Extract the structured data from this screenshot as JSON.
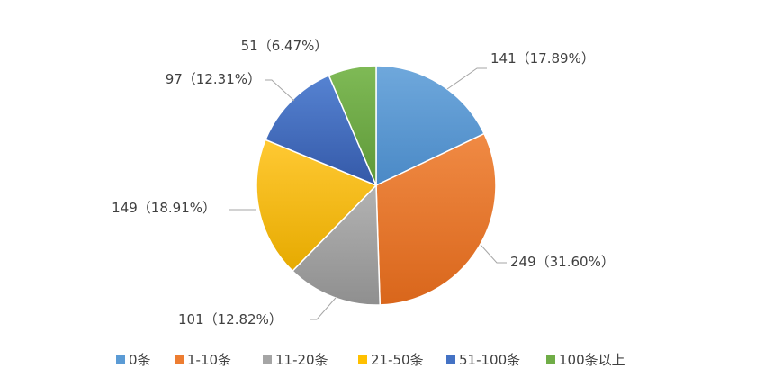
{
  "chart_data": {
    "type": "pie",
    "title": "",
    "legend_position": "bottom",
    "slices": [
      {
        "name": "0条",
        "value": 141,
        "label": "141（17.89%）",
        "color": "#5b9bd5"
      },
      {
        "name": "1-10条",
        "value": 249,
        "label": "249（31.60%）",
        "color": "#ed7d31"
      },
      {
        "name": "11-20条",
        "value": 101,
        "label": "101（12.82%）",
        "color": "#a5a5a5"
      },
      {
        "name": "21-50条",
        "value": 149,
        "label": "149（18.91%）",
        "color": "#ffc000"
      },
      {
        "name": "51-100条",
        "value": 97,
        "label": "97（12.31%）",
        "color": "#4472c4"
      },
      {
        "name": "100条以上",
        "value": 51,
        "label": "51（6.47%）",
        "color": "#70ad47"
      }
    ]
  }
}
